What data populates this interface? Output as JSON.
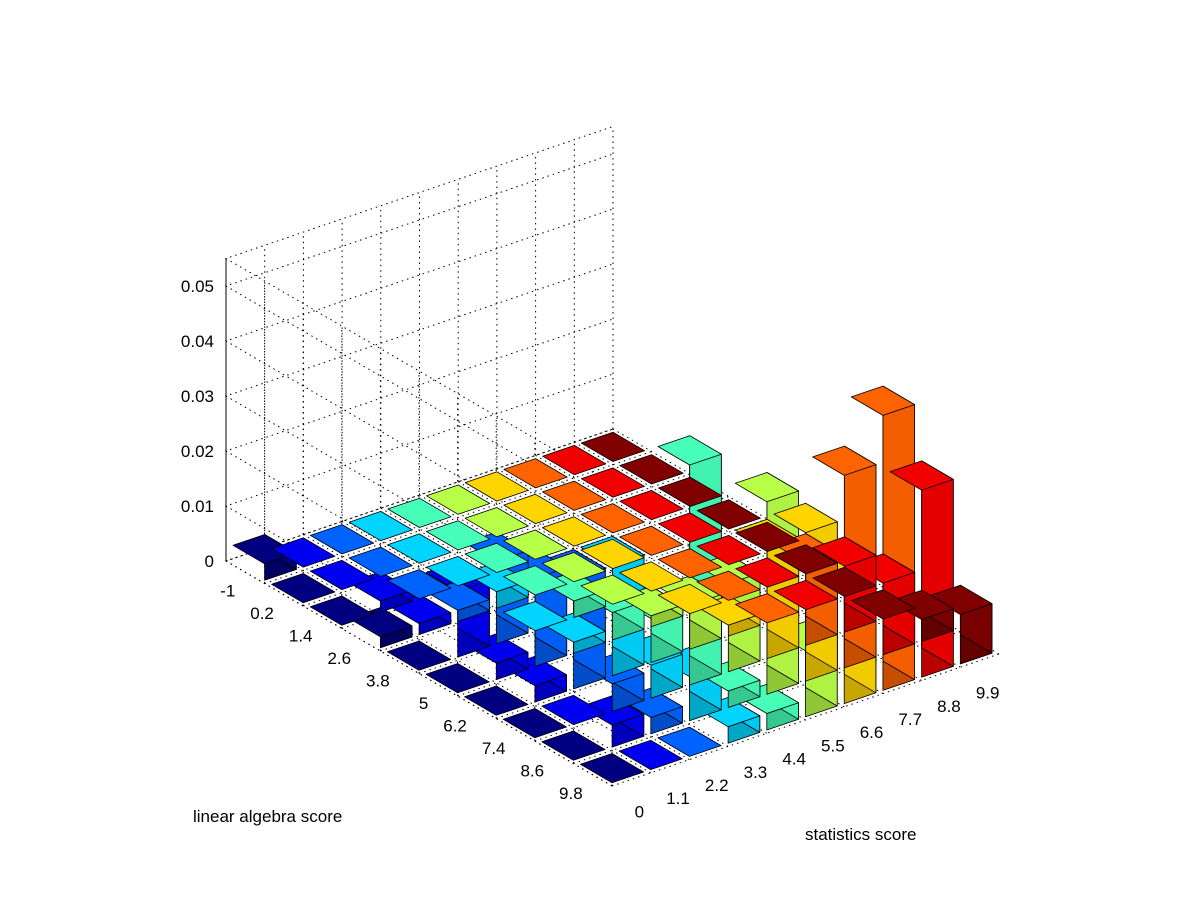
{
  "chart_data": {
    "type": "bar3",
    "xlabel": "statistics score",
    "ylabel": "linear algebra score",
    "x_ticks": [
      "0",
      "1.1",
      "2.2",
      "3.3",
      "4.4",
      "5.5",
      "6.6",
      "7.7",
      "8.8",
      "9.9"
    ],
    "y_ticks": [
      "-1",
      "0.2",
      "1.4",
      "2.6",
      "3.8",
      "5",
      "6.2",
      "7.4",
      "8.6",
      "9.8"
    ],
    "z_ticks": [
      "0",
      "0.01",
      "0.02",
      "0.03",
      "0.04",
      "0.05"
    ],
    "zlim": [
      0,
      0.055
    ],
    "grid": true,
    "colormap": "jet",
    "values": [
      [
        0.003,
        0,
        0,
        0,
        0,
        0,
        0,
        0,
        0,
        0
      ],
      [
        0,
        0,
        0,
        0,
        0,
        0,
        0,
        0,
        0,
        0
      ],
      [
        0,
        0.002,
        0,
        0,
        0,
        0,
        0,
        0,
        0,
        0
      ],
      [
        0.002,
        0.002,
        0.002,
        0.003,
        0,
        0,
        0,
        0,
        0,
        0
      ],
      [
        0,
        0.012,
        0.015,
        0,
        0.003,
        0,
        0,
        0,
        0,
        0
      ],
      [
        0,
        0.003,
        0.016,
        0.002,
        0.005,
        0.002,
        0,
        0,
        0,
        0
      ],
      [
        0,
        0.003,
        0.02,
        0.02,
        0.008,
        0.008,
        0.002,
        0,
        0,
        0
      ],
      [
        0,
        0,
        0.005,
        0.006,
        0.04,
        0.016,
        0.02,
        0.015,
        0.012,
        0
      ],
      [
        0,
        0.004,
        0.003,
        0.008,
        0.003,
        0.035,
        0.027,
        0.035,
        0.013,
        0.004
      ],
      [
        0,
        0,
        0,
        0.003,
        0.003,
        0.012,
        0.022,
        0.05,
        0.034,
        0.009
      ]
    ]
  }
}
